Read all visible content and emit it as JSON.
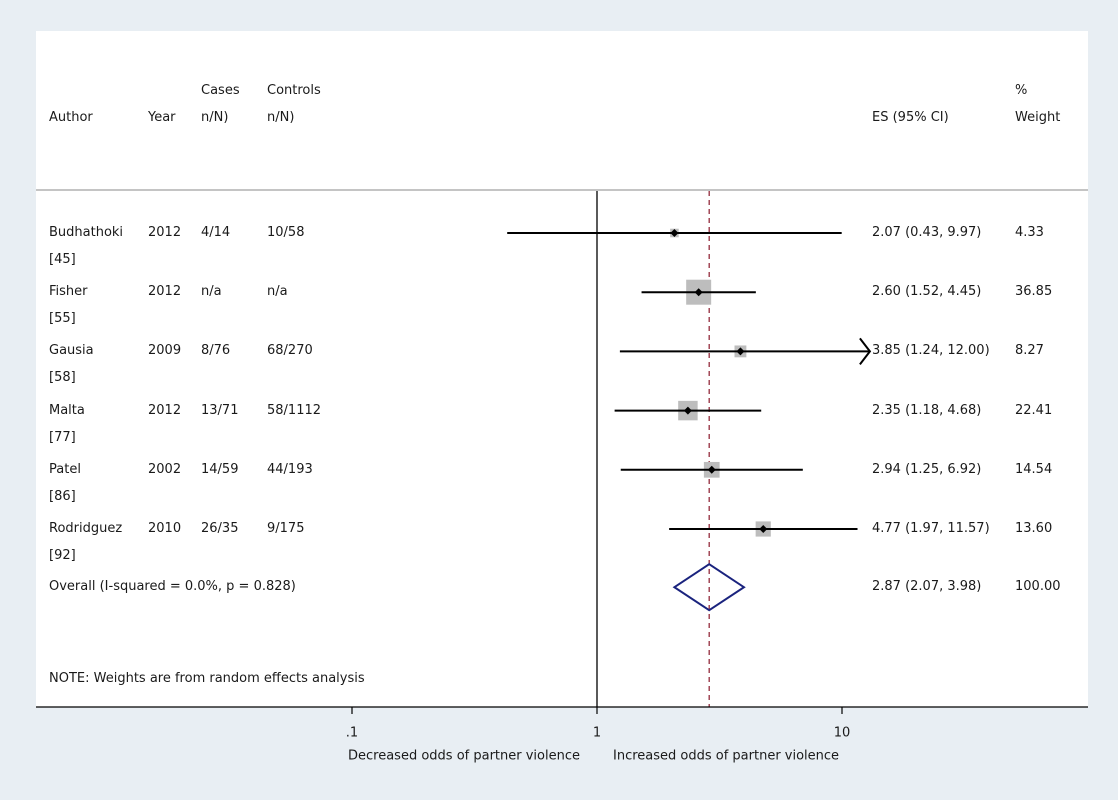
{
  "headers": {
    "author": "Author",
    "year": "Year",
    "cases_line1": "Cases",
    "cases_line2": "n/N)",
    "controls_line1": "Controls",
    "controls_line2": "n/N)",
    "es": "ES (95% CI)",
    "weight_line1": "%",
    "weight_line2": "Weight"
  },
  "chart_data": {
    "type": "forest",
    "x_scale": "log",
    "xlim": [
      0.04,
      40
    ],
    "xticks": [
      {
        "value": 0.1,
        "label": ".1"
      },
      {
        "value": 1,
        "label": "1"
      },
      {
        "value": 10,
        "label": "10"
      }
    ],
    "null_line": 1,
    "pooled_estimate_line": 2.87,
    "xlabel_left": "Decreased odds of partner violence",
    "xlabel_right": "Increased odds of partner violence",
    "studies": [
      {
        "author": "Budhathoki",
        "ref": "[45]",
        "year": "2012",
        "cases": "4/14",
        "controls": "10/58",
        "es": 2.07,
        "lo": 0.43,
        "hi": 9.97,
        "es_text": "2.07 (0.43, 9.97)",
        "weight": 4.33,
        "weight_text": "4.33",
        "arrow": false
      },
      {
        "author": "Fisher",
        "ref": "[55]",
        "year": "2012",
        "cases": "n/a",
        "controls": "n/a",
        "es": 2.6,
        "lo": 1.52,
        "hi": 4.45,
        "es_text": "2.60 (1.52, 4.45)",
        "weight": 36.85,
        "weight_text": "36.85",
        "arrow": false
      },
      {
        "author": "Gausia",
        "ref": "[58]",
        "year": "2009",
        "cases": "8/76",
        "controls": "68/270",
        "es": 3.85,
        "lo": 1.24,
        "hi": 12.0,
        "es_text": "3.85 (1.24, 12.00)",
        "weight": 8.27,
        "weight_text": "8.27",
        "arrow": true
      },
      {
        "author": "Malta",
        "ref": "[77]",
        "year": "2012",
        "cases": "13/71",
        "controls": "58/1112",
        "es": 2.35,
        "lo": 1.18,
        "hi": 4.68,
        "es_text": "2.35 (1.18, 4.68)",
        "weight": 22.41,
        "weight_text": "22.41",
        "arrow": false
      },
      {
        "author": "Patel",
        "ref": "[86]",
        "year": "2002",
        "cases": "14/59",
        "controls": "44/193",
        "es": 2.94,
        "lo": 1.25,
        "hi": 6.92,
        "es_text": "2.94 (1.25, 6.92)",
        "weight": 14.54,
        "weight_text": "14.54",
        "arrow": false
      },
      {
        "author": "Rodridguez",
        "ref": "[92]",
        "year": "2010",
        "cases": "26/35",
        "controls": "9/175",
        "es": 4.77,
        "lo": 1.97,
        "hi": 11.57,
        "es_text": "4.77 (1.97, 11.57)",
        "weight": 13.6,
        "weight_text": "13.60",
        "arrow": false
      }
    ],
    "overall": {
      "label": "Overall  (I-squared = 0.0%, p = 0.828)",
      "es": 2.87,
      "lo": 2.07,
      "hi": 3.98,
      "es_text": "2.87 (2.07, 3.98)",
      "weight_text": "100.00"
    },
    "note": "NOTE: Weights are from random effects analysis",
    "colors": {
      "box": "#bdbdbd",
      "ci_line": "#000000",
      "diamond": "#1a237e",
      "pooled_line": "#8b1a2b",
      "axis": "#000000",
      "header_rule": "#b0b0b0"
    }
  }
}
